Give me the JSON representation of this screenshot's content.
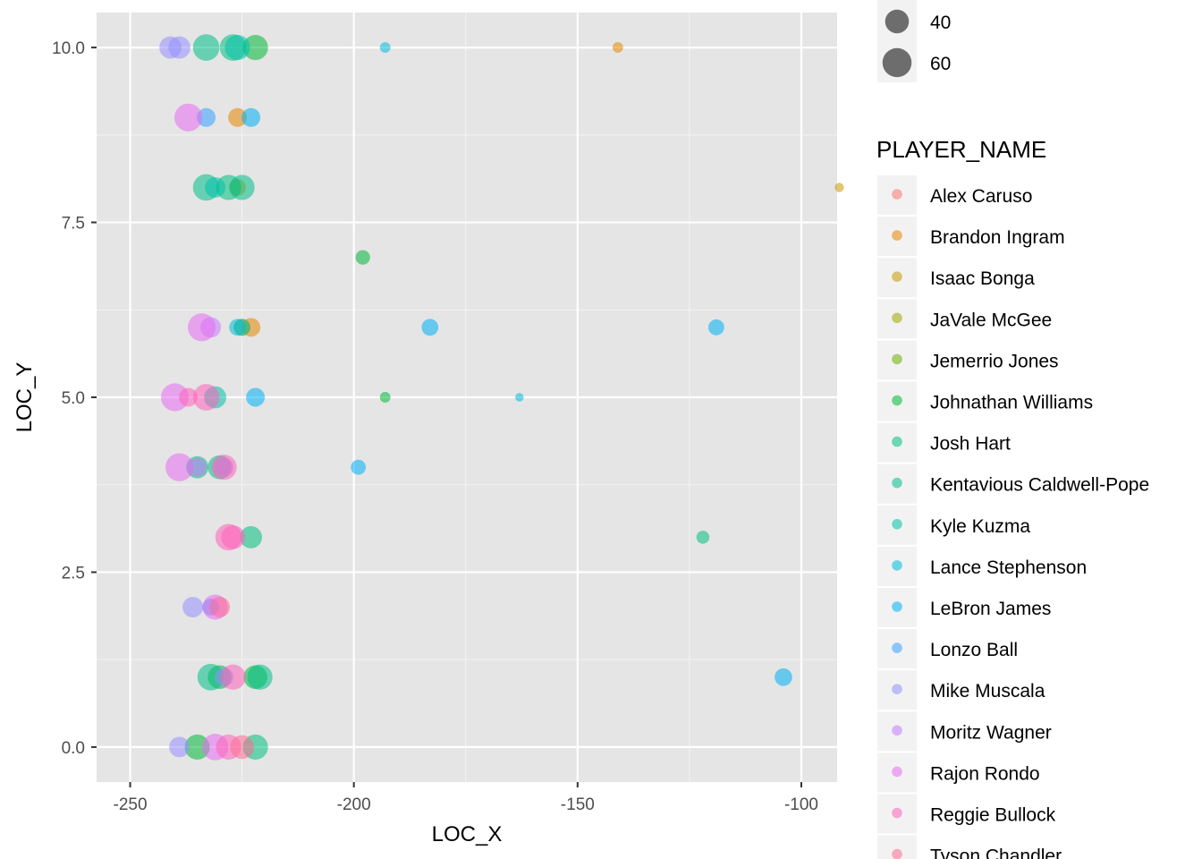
{
  "chart_data": {
    "type": "scatter",
    "xlabel": "LOC_X",
    "ylabel": "LOC_Y",
    "xlim": [
      -257.5,
      -92
    ],
    "ylim": [
      -0.5,
      10.5
    ],
    "x_ticks": [
      -250,
      -200,
      -150,
      -100
    ],
    "x_tick_labels": [
      "-250",
      "-200",
      "-150",
      "-100"
    ],
    "y_ticks": [
      0,
      2.5,
      5,
      7.5,
      10
    ],
    "y_tick_labels": [
      "0.0",
      "2.5",
      "5.0",
      "7.5",
      "10.0"
    ],
    "grid": true,
    "panel_background": "#e5e5e5",
    "point_opacity": 0.55,
    "size_legend": {
      "title": "",
      "entries": [
        {
          "label": "40",
          "value": 40
        },
        {
          "label": "60",
          "value": 60
        }
      ]
    },
    "color_legend": {
      "title": "PLAYER_NAME",
      "placement": "right"
    },
    "series": [
      {
        "name": "Alex Caruso",
        "color": "#F8766D",
        "points": []
      },
      {
        "name": "Brandon Ingram",
        "color": "#E58700",
        "points": [
          {
            "x": -226,
            "y": 9,
            "size": 25
          },
          {
            "x": -223,
            "y": 6,
            "size": 25
          },
          {
            "x": -141,
            "y": 10,
            "size": 8
          }
        ]
      },
      {
        "name": "Isaac Bonga",
        "color": "#C99800",
        "points": [
          {
            "x": -226,
            "y": 8,
            "size": 20
          },
          {
            "x": -225,
            "y": 6,
            "size": 20
          },
          {
            "x": -91.5,
            "y": 8,
            "size": 6
          }
        ]
      },
      {
        "name": "JaVale McGee",
        "color": "#A3A500",
        "points": []
      },
      {
        "name": "Jemerrio Jones",
        "color": "#6BB100",
        "points": []
      },
      {
        "name": "Johnathan Williams",
        "color": "#00BA38",
        "points": [
          {
            "x": -222,
            "y": 10,
            "size": 45
          },
          {
            "x": -235,
            "y": 0,
            "size": 45
          },
          {
            "x": -193,
            "y": 5,
            "size": 8
          },
          {
            "x": -198,
            "y": 7,
            "size": 15
          },
          {
            "x": -230,
            "y": 1,
            "size": 40
          },
          {
            "x": -222,
            "y": 1,
            "size": 40
          }
        ]
      },
      {
        "name": "Josh Hart",
        "color": "#00BF7D",
        "points": [
          {
            "x": -227,
            "y": 10,
            "size": 50
          },
          {
            "x": -228,
            "y": 8,
            "size": 45
          },
          {
            "x": -223,
            "y": 3,
            "size": 35
          },
          {
            "x": -235,
            "y": 4,
            "size": 35
          },
          {
            "x": -222,
            "y": 0,
            "size": 45
          },
          {
            "x": -122,
            "y": 3,
            "size": 12
          }
        ]
      },
      {
        "name": "Kentavious Caldwell-Pope",
        "color": "#00C08B",
        "points": [
          {
            "x": -233,
            "y": 10,
            "size": 50
          },
          {
            "x": -233,
            "y": 8,
            "size": 50
          },
          {
            "x": -232,
            "y": 1,
            "size": 50
          },
          {
            "x": -230,
            "y": 4,
            "size": 40
          },
          {
            "x": -225,
            "y": 8,
            "size": 45
          },
          {
            "x": -221,
            "y": 1,
            "size": 45
          }
        ]
      },
      {
        "name": "Kyle Kuzma",
        "color": "#00C1AA",
        "points": [
          {
            "x": -231,
            "y": 5,
            "size": 35
          },
          {
            "x": -231,
            "y": 8,
            "size": 30
          },
          {
            "x": -225,
            "y": 6,
            "size": 20
          },
          {
            "x": -226,
            "y": 10,
            "size": 45
          }
        ]
      },
      {
        "name": "Lance Stephenson",
        "color": "#00BBDA",
        "points": [
          {
            "x": -193,
            "y": 10,
            "size": 8
          },
          {
            "x": -163,
            "y": 5,
            "size": 5
          },
          {
            "x": -226,
            "y": 6,
            "size": 20
          }
        ]
      },
      {
        "name": "LeBron James",
        "color": "#00B0F6",
        "points": [
          {
            "x": -223,
            "y": 9,
            "size": 25
          },
          {
            "x": -222,
            "y": 5,
            "size": 25
          },
          {
            "x": -183,
            "y": 6,
            "size": 20
          },
          {
            "x": -119,
            "y": 6,
            "size": 18
          },
          {
            "x": -104,
            "y": 1,
            "size": 22
          },
          {
            "x": -199,
            "y": 4,
            "size": 16
          }
        ]
      },
      {
        "name": "Lonzo Ball",
        "color": "#35A2FF",
        "points": [
          {
            "x": -233,
            "y": 9,
            "size": 25
          },
          {
            "x": -232,
            "y": 2,
            "size": 20
          }
        ]
      },
      {
        "name": "Mike Muscala",
        "color": "#9590FF",
        "points": [
          {
            "x": -241,
            "y": 10,
            "size": 35
          },
          {
            "x": -239,
            "y": 10,
            "size": 35
          },
          {
            "x": -236,
            "y": 2,
            "size": 30
          },
          {
            "x": -239,
            "y": 0,
            "size": 30
          },
          {
            "x": -229,
            "y": 1,
            "size": 25
          }
        ]
      },
      {
        "name": "Moritz Wagner",
        "color": "#C77CFF",
        "points": [
          {
            "x": -232,
            "y": 6,
            "size": 30
          },
          {
            "x": -235,
            "y": 4,
            "size": 25
          },
          {
            "x": -229,
            "y": 4,
            "size": 25
          }
        ]
      },
      {
        "name": "Rajon Rondo",
        "color": "#E76BF3",
        "points": [
          {
            "x": -237,
            "y": 9,
            "size": 55
          },
          {
            "x": -234,
            "y": 6,
            "size": 55
          },
          {
            "x": -240,
            "y": 5,
            "size": 55
          },
          {
            "x": -239,
            "y": 4,
            "size": 55
          },
          {
            "x": -231,
            "y": 0,
            "size": 50
          },
          {
            "x": -231,
            "y": 2,
            "size": 45
          }
        ]
      },
      {
        "name": "Reggie Bullock",
        "color": "#FF62BC",
        "points": [
          {
            "x": -233,
            "y": 5,
            "size": 50
          },
          {
            "x": -229,
            "y": 4,
            "size": 45
          },
          {
            "x": -228,
            "y": 3,
            "size": 50
          },
          {
            "x": -227,
            "y": 3,
            "size": 40
          },
          {
            "x": -227,
            "y": 1,
            "size": 45
          },
          {
            "x": -228,
            "y": 0,
            "size": 45
          },
          {
            "x": -237,
            "y": 5,
            "size": 25
          }
        ]
      },
      {
        "name": "Tyson Chandler",
        "color": "#FF6C91",
        "points": [
          {
            "x": -225,
            "y": 0,
            "size": 40
          },
          {
            "x": -230,
            "y": 2,
            "size": 30
          }
        ]
      }
    ]
  }
}
